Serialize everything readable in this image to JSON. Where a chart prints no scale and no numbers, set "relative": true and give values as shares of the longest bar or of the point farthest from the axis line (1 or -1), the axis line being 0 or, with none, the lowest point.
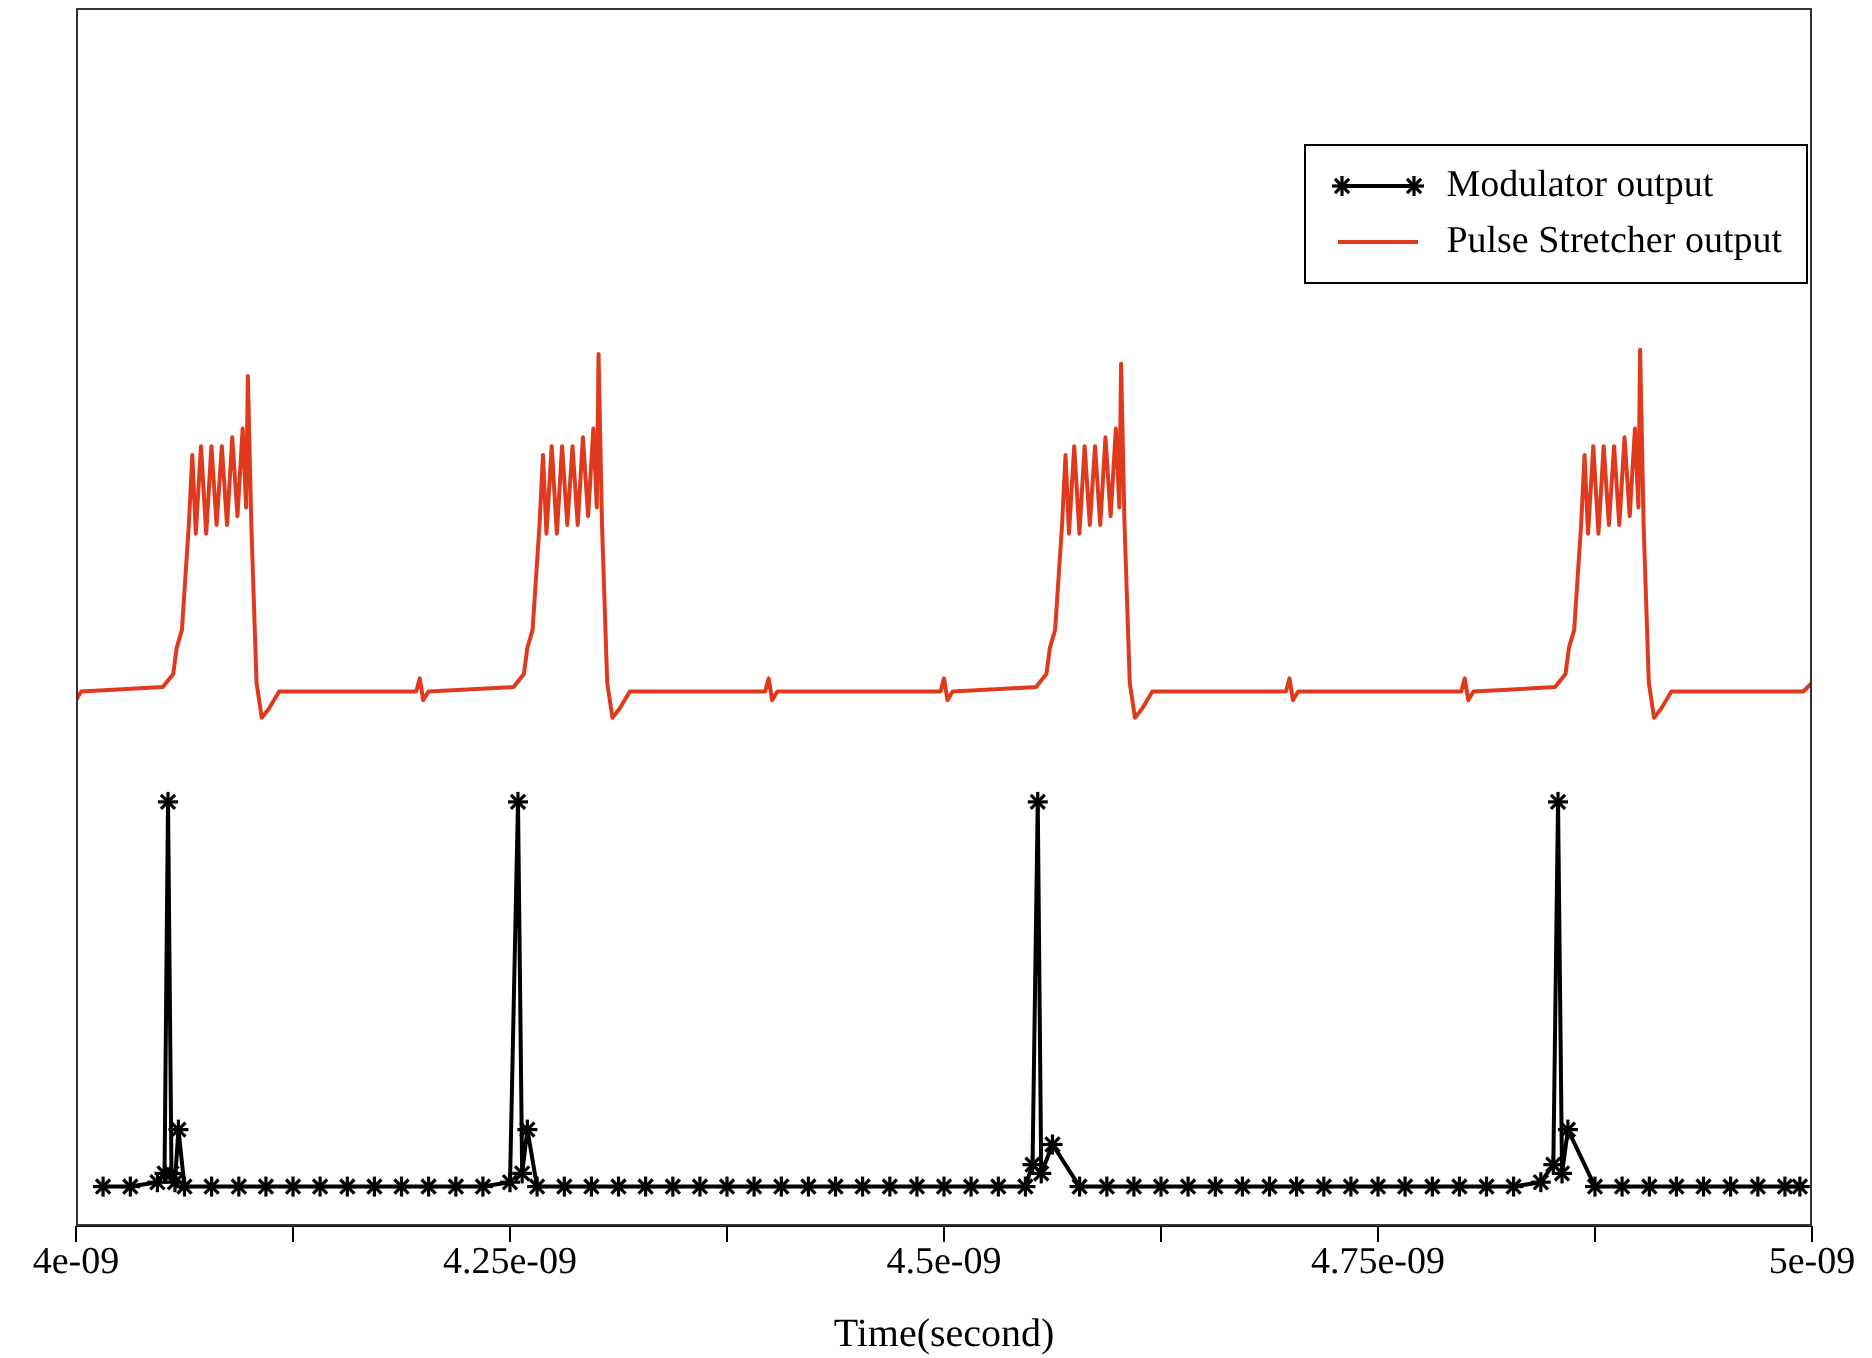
{
  "chart_data": {
    "type": "line",
    "relative": true,
    "xlabel": "Time(second)",
    "xlim": [
      4e-09,
      5e-09
    ],
    "xticks": [
      {
        "value": 4e-09,
        "label": "4e-09"
      },
      {
        "value": 4.125e-09,
        "label": null
      },
      {
        "value": 4.25e-09,
        "label": "4.25e-09"
      },
      {
        "value": 4.375e-09,
        "label": null
      },
      {
        "value": 4.5e-09,
        "label": "4.5e-09"
      },
      {
        "value": 4.625e-09,
        "label": null
      },
      {
        "value": 4.75e-09,
        "label": "4.75e-09"
      },
      {
        "value": 4.875e-09,
        "label": null
      },
      {
        "value": 5e-09,
        "label": "5e-09"
      }
    ],
    "legend": "top right",
    "grid": false,
    "line_style": "solid",
    "series": [
      {
        "name": "Modulator output",
        "color": "#000000",
        "marker": "cross",
        "x": [
          4.0156e-09,
          4.0313e-09,
          4.0469e-09,
          4.051e-09,
          4.053e-09,
          4.055e-09,
          4.057e-09,
          4.059e-09,
          4.0625e-09,
          4.0781e-09,
          4.0938e-09,
          4.1094e-09,
          4.125e-09,
          4.1406e-09,
          4.1563e-09,
          4.1719e-09,
          4.1875e-09,
          4.2031e-09,
          4.2188e-09,
          4.2344e-09,
          4.25e-09,
          4.2546e-09,
          4.257e-09,
          4.26e-09,
          4.2656e-09,
          4.2813e-09,
          4.2969e-09,
          4.3125e-09,
          4.3281e-09,
          4.3438e-09,
          4.3594e-09,
          4.375e-09,
          4.3906e-09,
          4.4063e-09,
          4.4219e-09,
          4.4375e-09,
          4.4531e-09,
          4.4688e-09,
          4.4844e-09,
          4.5e-09,
          4.5156e-09,
          4.5313e-09,
          4.5469e-09,
          4.551e-09,
          4.554e-09,
          4.556e-09,
          4.5625e-09,
          4.5781e-09,
          4.5938e-09,
          4.6094e-09,
          4.625e-09,
          4.6406e-09,
          4.6563e-09,
          4.6719e-09,
          4.6875e-09,
          4.7031e-09,
          4.7188e-09,
          4.7344e-09,
          4.75e-09,
          4.7656e-09,
          4.7813e-09,
          4.7969e-09,
          4.8125e-09,
          4.8281e-09,
          4.8438e-09,
          4.851e-09,
          4.8537e-09,
          4.856e-09,
          4.8594e-09,
          4.875e-09,
          4.8906e-09,
          4.9063e-09,
          4.9219e-09,
          4.9375e-09,
          4.9531e-09,
          4.9688e-09,
          4.9844e-09,
          4.993e-09
        ],
        "values": [
          0.045,
          0.045,
          0.05,
          0.06,
          0.484,
          0.06,
          0.05,
          0.11,
          0.045,
          0.045,
          0.045,
          0.045,
          0.045,
          0.045,
          0.045,
          0.045,
          0.045,
          0.045,
          0.045,
          0.045,
          0.05,
          0.484,
          0.06,
          0.11,
          0.045,
          0.045,
          0.045,
          0.045,
          0.045,
          0.045,
          0.045,
          0.045,
          0.045,
          0.045,
          0.045,
          0.045,
          0.045,
          0.045,
          0.045,
          0.045,
          0.045,
          0.045,
          0.045,
          0.07,
          0.484,
          0.06,
          0.093,
          0.045,
          0.045,
          0.045,
          0.045,
          0.045,
          0.045,
          0.045,
          0.045,
          0.045,
          0.045,
          0.045,
          0.045,
          0.045,
          0.045,
          0.045,
          0.045,
          0.045,
          0.05,
          0.07,
          0.484,
          0.06,
          0.11,
          0.045,
          0.045,
          0.045,
          0.045,
          0.045,
          0.045,
          0.045,
          0.045,
          0.045
        ]
      },
      {
        "name": "Pulse Stretcher output",
        "color": "#e03a1e",
        "marker": "none",
        "x": [
          4e-09,
          4.003e-09,
          4.05e-09,
          4.056e-09,
          4.058e-09,
          4.061e-09,
          4.065e-09,
          4.067e-09,
          4.069e-09,
          4.072e-09,
          4.075e-09,
          4.078e-09,
          4.081e-09,
          4.084e-09,
          4.087e-09,
          4.09e-09,
          4.093e-09,
          4.096e-09,
          4.098e-09,
          4.099e-09,
          4.101e-09,
          4.104e-09,
          4.107e-09,
          4.111e-09,
          4.117e-09,
          4.196e-09,
          4.198e-09,
          4.2e-09,
          4.203e-09,
          4.252e-09,
          4.258e-09,
          4.26e-09,
          4.263e-09,
          4.267e-09,
          4.269e-09,
          4.271e-09,
          4.274e-09,
          4.277e-09,
          4.28e-09,
          4.283e-09,
          4.286e-09,
          4.289e-09,
          4.292e-09,
          4.295e-09,
          4.298e-09,
          4.3e-09,
          4.301e-09,
          4.303e-09,
          4.306e-09,
          4.309e-09,
          4.313e-09,
          4.319e-09,
          4.397e-09,
          4.399e-09,
          4.401e-09,
          4.404e-09,
          4.498e-09,
          4.5e-09,
          4.502e-09,
          4.505e-09,
          4.553e-09,
          4.559e-09,
          4.561e-09,
          4.564e-09,
          4.568e-09,
          4.57e-09,
          4.572e-09,
          4.575e-09,
          4.578e-09,
          4.581e-09,
          4.584e-09,
          4.587e-09,
          4.59e-09,
          4.593e-09,
          4.596e-09,
          4.599e-09,
          4.601e-09,
          4.602e-09,
          4.604e-09,
          4.607e-09,
          4.61e-09,
          4.614e-09,
          4.62e-09,
          4.697e-09,
          4.699e-09,
          4.701e-09,
          4.704e-09,
          4.798e-09,
          4.8e-09,
          4.802e-09,
          4.805e-09,
          4.852e-09,
          4.858e-09,
          4.86e-09,
          4.863e-09,
          4.867e-09,
          4.869e-09,
          4.871e-09,
          4.874e-09,
          4.877e-09,
          4.88e-09,
          4.883e-09,
          4.886e-09,
          4.889e-09,
          4.892e-09,
          4.895e-09,
          4.898e-09,
          4.9e-09,
          4.901e-09,
          4.903e-09,
          4.906e-09,
          4.909e-09,
          4.913e-09,
          4.919e-09,
          4.995e-09,
          5e-09
        ],
        "values": [
          0.6,
          0.61,
          0.615,
          0.63,
          0.66,
          0.68,
          0.8,
          0.88,
          0.79,
          0.89,
          0.79,
          0.89,
          0.8,
          0.89,
          0.8,
          0.9,
          0.81,
          0.91,
          0.82,
          0.97,
          0.8,
          0.62,
          0.58,
          0.59,
          0.61,
          0.61,
          0.625,
          0.6,
          0.61,
          0.615,
          0.63,
          0.66,
          0.68,
          0.8,
          0.88,
          0.79,
          0.89,
          0.79,
          0.89,
          0.8,
          0.89,
          0.8,
          0.9,
          0.81,
          0.91,
          0.82,
          0.995,
          0.8,
          0.62,
          0.58,
          0.59,
          0.61,
          0.61,
          0.625,
          0.6,
          0.61,
          0.61,
          0.625,
          0.6,
          0.61,
          0.615,
          0.63,
          0.66,
          0.68,
          0.8,
          0.88,
          0.79,
          0.89,
          0.79,
          0.89,
          0.8,
          0.89,
          0.8,
          0.9,
          0.81,
          0.91,
          0.82,
          0.984,
          0.8,
          0.62,
          0.58,
          0.59,
          0.61,
          0.61,
          0.625,
          0.6,
          0.61,
          0.61,
          0.625,
          0.6,
          0.61,
          0.615,
          0.63,
          0.66,
          0.68,
          0.8,
          0.88,
          0.79,
          0.89,
          0.79,
          0.89,
          0.8,
          0.89,
          0.8,
          0.9,
          0.81,
          0.91,
          0.82,
          1,
          0.8,
          0.62,
          0.58,
          0.59,
          0.61,
          0.61,
          0.62
        ]
      }
    ]
  }
}
